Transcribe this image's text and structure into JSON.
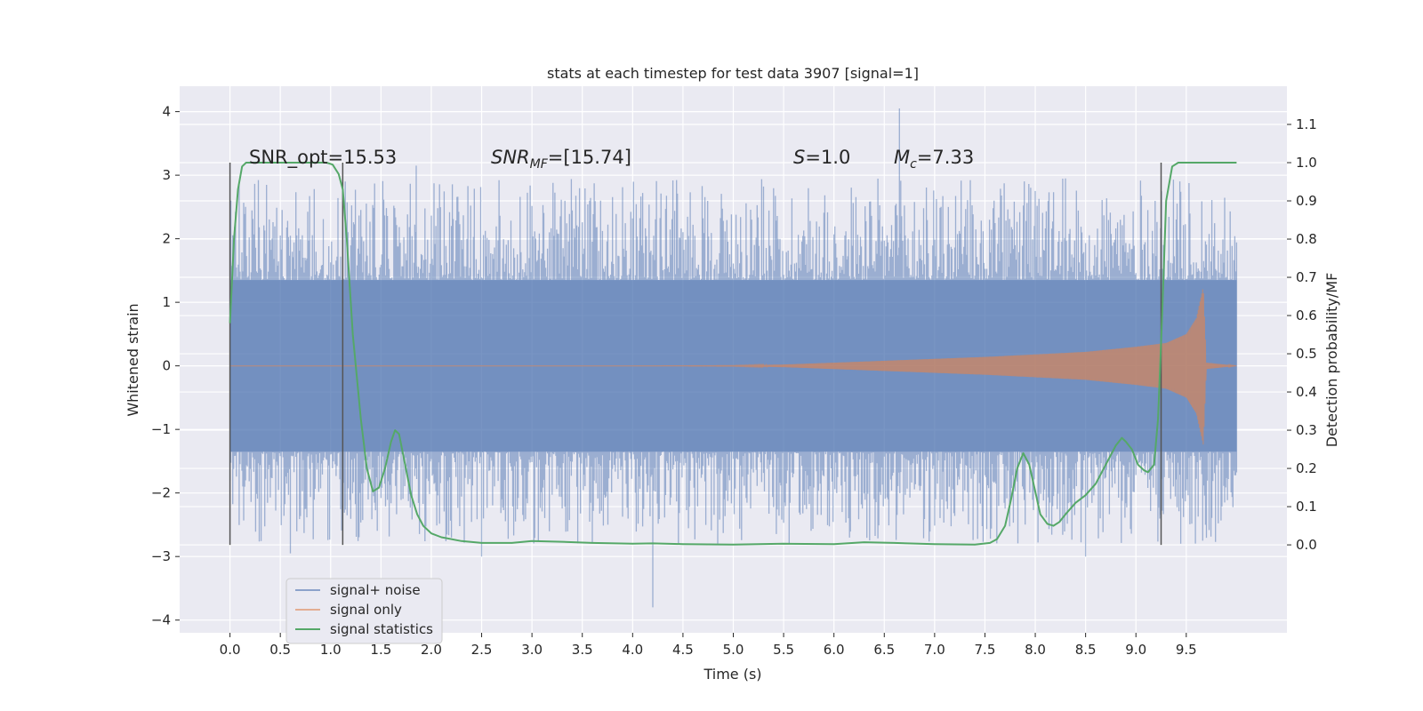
{
  "chart_data": {
    "type": "line",
    "title": "stats at each timestep for test data 3907 [signal=1]",
    "xlabel": "Time (s)",
    "ylabel": "Whitened strain",
    "y2label": "Detection probability/MF",
    "xlim": [
      -0.5,
      10.5
    ],
    "ylim": [
      -4.2,
      4.4
    ],
    "y2lim": [
      -0.23,
      1.2
    ],
    "x_ticks": [
      "0.0",
      "0.5",
      "1.0",
      "1.5",
      "2.0",
      "2.5",
      "3.0",
      "3.5",
      "4.0",
      "4.5",
      "5.0",
      "5.5",
      "6.0",
      "6.5",
      "7.0",
      "7.5",
      "8.0",
      "8.5",
      "9.0",
      "9.5"
    ],
    "y_ticks": [
      "4",
      "3",
      "2",
      "1",
      "0",
      "−1",
      "−2",
      "−3",
      "−4"
    ],
    "y2_ticks": [
      "1.1",
      "1.0",
      "0.9",
      "0.8",
      "0.7",
      "0.6",
      "0.5",
      "0.4",
      "0.3",
      "0.2",
      "0.1",
      "0.0"
    ],
    "grid": true,
    "legend_position": "bottom-left",
    "annotations": {
      "snr_opt": "SNR_opt=15.53",
      "snr_mf_main": "SNR",
      "snr_mf_sub": "MF",
      "snr_mf_rest": "=[15.74]",
      "s_main": "S",
      "s_rest": "=1.0",
      "mc_main": "M",
      "mc_sub": "c",
      "mc_rest": "=7.33"
    },
    "vlines_x": [
      0.0,
      1.12,
      9.25
    ],
    "colors": {
      "noise": "#4c72b0",
      "signal": "#dd8452",
      "stats": "#55a868",
      "background": "#eaeaf2"
    },
    "series": [
      {
        "name": "signal+ noise",
        "envelope": {
          "x": [
            0.0,
            10.0
          ],
          "core_amplitude": 1.35,
          "peak_amplitude": 4.05,
          "min_value": -3.8
        }
      },
      {
        "name": "signal only",
        "envelope": {
          "x": [
            0.0,
            4.0,
            5.0,
            5.5,
            6.0,
            6.5,
            7.0,
            7.5,
            8.0,
            8.5,
            9.0,
            9.3,
            9.5,
            9.6,
            9.67,
            9.7,
            10.0
          ],
          "amplitude": [
            0.0,
            0.0,
            0.005,
            0.02,
            0.05,
            0.08,
            0.11,
            0.14,
            0.18,
            0.22,
            0.3,
            0.36,
            0.5,
            0.75,
            1.25,
            0.05,
            0.0
          ]
        }
      },
      {
        "name": "signal statistics",
        "x": [
          0.0,
          0.04,
          0.08,
          0.12,
          0.16,
          0.22,
          0.3,
          0.4,
          0.5,
          0.6,
          0.7,
          0.8,
          0.9,
          0.96,
          1.02,
          1.08,
          1.12,
          1.16,
          1.22,
          1.3,
          1.36,
          1.42,
          1.48,
          1.54,
          1.6,
          1.64,
          1.68,
          1.74,
          1.8,
          1.86,
          1.92,
          2.0,
          2.1,
          2.3,
          2.5,
          2.8,
          3.0,
          3.3,
          3.6,
          4.0,
          4.2,
          4.5,
          5.0,
          5.5,
          6.0,
          6.3,
          6.6,
          7.0,
          7.4,
          7.55,
          7.62,
          7.7,
          7.76,
          7.82,
          7.88,
          7.94,
          8.0,
          8.05,
          8.12,
          8.18,
          8.24,
          8.3,
          8.4,
          8.5,
          8.6,
          8.7,
          8.8,
          8.86,
          8.9,
          8.96,
          9.02,
          9.08,
          9.12,
          9.18,
          9.22,
          9.26,
          9.3,
          9.36,
          9.42,
          9.5,
          9.6,
          9.8,
          10.0
        ],
        "y": [
          0.58,
          0.8,
          0.93,
          0.99,
          1.0,
          1.0,
          1.0,
          1.0,
          1.0,
          1.0,
          1.0,
          1.0,
          1.0,
          1.0,
          0.995,
          0.97,
          0.93,
          0.8,
          0.55,
          0.33,
          0.2,
          0.14,
          0.15,
          0.2,
          0.27,
          0.3,
          0.29,
          0.21,
          0.13,
          0.08,
          0.05,
          0.03,
          0.02,
          0.01,
          0.005,
          0.005,
          0.01,
          0.008,
          0.005,
          0.003,
          0.004,
          0.002,
          0.001,
          0.003,
          0.002,
          0.007,
          0.005,
          0.002,
          0.001,
          0.005,
          0.015,
          0.05,
          0.12,
          0.2,
          0.24,
          0.21,
          0.14,
          0.08,
          0.055,
          0.05,
          0.06,
          0.08,
          0.11,
          0.13,
          0.16,
          0.21,
          0.26,
          0.28,
          0.27,
          0.25,
          0.21,
          0.195,
          0.19,
          0.21,
          0.33,
          0.6,
          0.9,
          0.99,
          1.0,
          1.0,
          1.0,
          1.0,
          1.0
        ]
      }
    ]
  }
}
